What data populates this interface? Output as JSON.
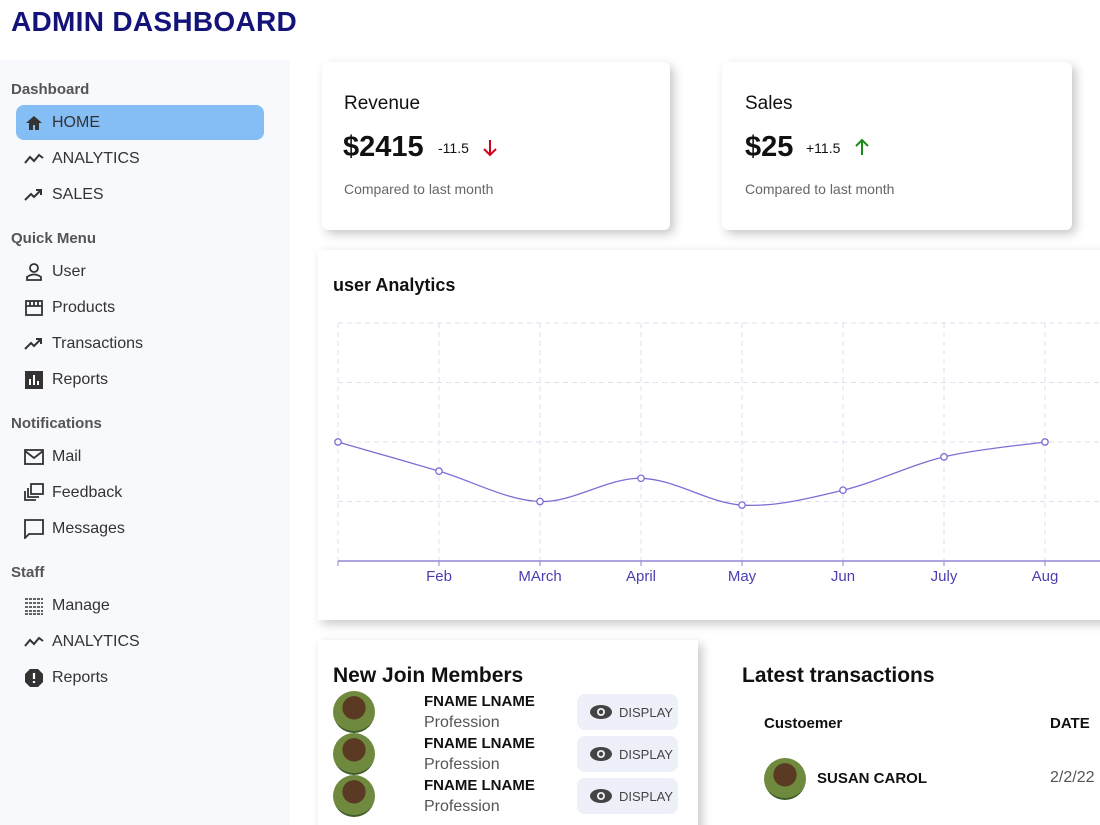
{
  "header": {
    "title": "ADMIN DASHBOARD"
  },
  "sidebar": {
    "sections": [
      {
        "title": "Dashboard",
        "items": [
          "HOME",
          "ANALYTICS",
          "SALES"
        ]
      },
      {
        "title": "Quick Menu",
        "items": [
          "User",
          "Products",
          "Transactions",
          "Reports"
        ]
      },
      {
        "title": "Notifications",
        "items": [
          "Mail",
          "Feedback",
          "Messages"
        ]
      },
      {
        "title": "Staff",
        "items": [
          "Manage",
          "ANALYTICS",
          "Reports"
        ]
      }
    ]
  },
  "cards": [
    {
      "title": "Revenue",
      "amount": "$2415",
      "change": "-11.5",
      "note": "Compared to last month"
    },
    {
      "title": "Sales",
      "amount": "$25",
      "change": "+11.5",
      "note": "Compared to last month"
    }
  ],
  "chart_data": {
    "type": "line",
    "title": "user Analytics",
    "categories": [
      null,
      "Feb",
      "MArch",
      "April",
      "May",
      "Jun",
      "July",
      "Aug"
    ],
    "values": [
      2000,
      1510,
      1000,
      1390,
      940,
      1190,
      1750,
      2000
    ],
    "color": "#7b6fd6",
    "ylim": [
      0,
      4000
    ],
    "yticks": [
      0,
      1000,
      2000,
      3000,
      4000
    ],
    "grid": true
  },
  "members": {
    "title": "New Join Members",
    "rows": [
      {
        "name": "FNAME LNAME",
        "profession": "Profession",
        "button": "DISPLAY"
      },
      {
        "name": "FNAME LNAME",
        "profession": "Profession",
        "button": "DISPLAY"
      },
      {
        "name": "FNAME LNAME",
        "profession": "Profession",
        "button": "DISPLAY"
      }
    ]
  },
  "transactions": {
    "title": "Latest transactions",
    "columns": [
      "Custoemer",
      "DATE"
    ],
    "rows": [
      [
        "SUSAN CAROL",
        "2/2/22"
      ]
    ]
  }
}
